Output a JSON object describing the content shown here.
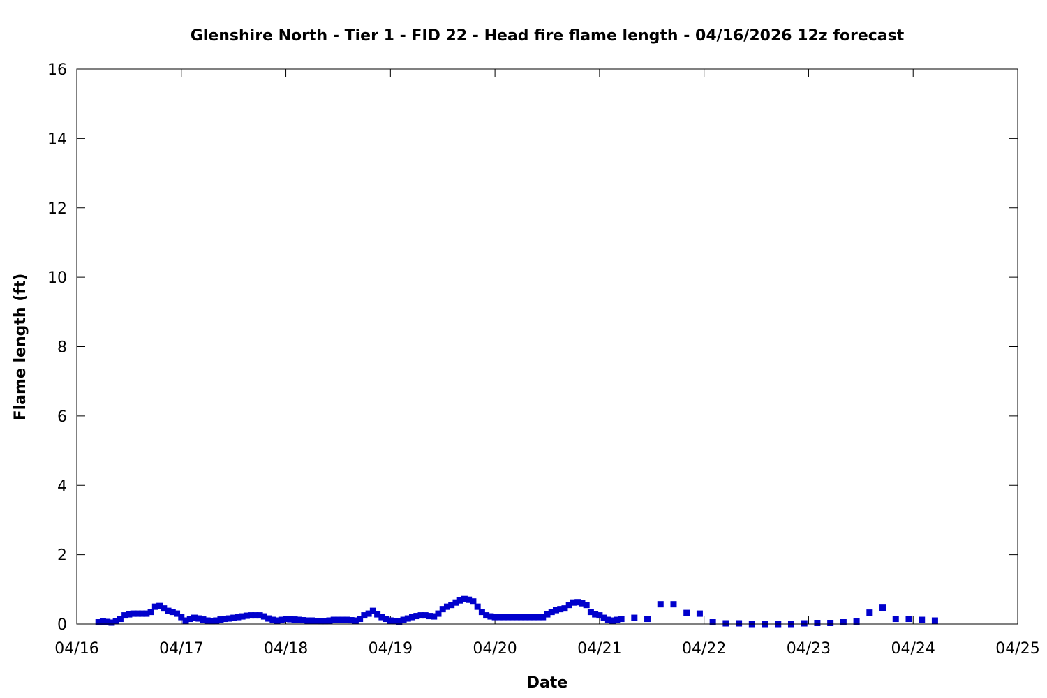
{
  "chart_data": {
    "type": "scatter",
    "title": "Glenshire North - Tier 1 - FID 22 - Head fire flame length - 04/16/2026 12z forecast",
    "xlabel": "Date",
    "ylabel": "Flame length (ft)",
    "x_ticks": [
      "04/16",
      "04/17",
      "04/18",
      "04/19",
      "04/20",
      "04/21",
      "04/22",
      "04/23",
      "04/24",
      "04/25"
    ],
    "y_ticks": [
      "0",
      "2",
      "4",
      "6",
      "8",
      "10",
      "12",
      "14",
      "16"
    ],
    "ylim": [
      0,
      16
    ],
    "xlim": [
      "04/16 00:00",
      "04/25 00:00"
    ],
    "grid": false,
    "marker_color": "#0000cc",
    "series": [
      {
        "x": [
          "04/16 05:00",
          "04/16 06:00",
          "04/16 07:00",
          "04/16 08:00",
          "04/16 09:00",
          "04/16 10:00",
          "04/16 11:00",
          "04/16 12:00",
          "04/16 13:00",
          "04/16 14:00",
          "04/16 15:00",
          "04/16 16:00",
          "04/16 17:00",
          "04/16 18:00",
          "04/16 19:00",
          "04/16 20:00",
          "04/16 21:00",
          "04/16 22:00",
          "04/16 23:00",
          "04/17 00:00",
          "04/17 01:00",
          "04/17 02:00",
          "04/17 03:00",
          "04/17 04:00",
          "04/17 05:00",
          "04/17 06:00",
          "04/17 07:00",
          "04/17 08:00",
          "04/17 09:00",
          "04/17 10:00",
          "04/17 11:00",
          "04/17 12:00",
          "04/17 13:00",
          "04/17 14:00",
          "04/17 15:00",
          "04/17 16:00",
          "04/17 17:00",
          "04/17 18:00",
          "04/17 19:00",
          "04/17 20:00",
          "04/17 21:00",
          "04/17 22:00",
          "04/17 23:00",
          "04/18 00:00",
          "04/18 01:00",
          "04/18 02:00",
          "04/18 03:00",
          "04/18 04:00",
          "04/18 05:00",
          "04/18 06:00",
          "04/18 07:00",
          "04/18 08:00",
          "04/18 09:00",
          "04/18 10:00",
          "04/18 11:00",
          "04/18 12:00",
          "04/18 13:00",
          "04/18 14:00",
          "04/18 15:00",
          "04/18 16:00",
          "04/18 17:00",
          "04/18 18:00",
          "04/18 19:00",
          "04/18 20:00",
          "04/18 21:00",
          "04/18 22:00",
          "04/18 23:00",
          "04/19 00:00",
          "04/19 01:00",
          "04/19 02:00",
          "04/19 03:00",
          "04/19 04:00",
          "04/19 05:00",
          "04/19 06:00",
          "04/19 07:00",
          "04/19 08:00",
          "04/19 09:00",
          "04/19 10:00",
          "04/19 11:00",
          "04/19 12:00",
          "04/19 13:00",
          "04/19 14:00",
          "04/19 15:00",
          "04/19 16:00",
          "04/19 17:00",
          "04/19 18:00",
          "04/19 19:00",
          "04/19 20:00",
          "04/19 21:00",
          "04/19 22:00",
          "04/19 23:00",
          "04/20 00:00",
          "04/20 01:00",
          "04/20 02:00",
          "04/20 03:00",
          "04/20 04:00",
          "04/20 05:00",
          "04/20 06:00",
          "04/20 07:00",
          "04/20 08:00",
          "04/20 09:00",
          "04/20 10:00",
          "04/20 11:00",
          "04/20 12:00",
          "04/20 13:00",
          "04/20 14:00",
          "04/20 15:00",
          "04/20 16:00",
          "04/20 17:00",
          "04/20 18:00",
          "04/20 19:00",
          "04/20 20:00",
          "04/20 21:00",
          "04/20 22:00",
          "04/20 23:00",
          "04/21 00:00",
          "04/21 01:00",
          "04/21 02:00",
          "04/21 03:00",
          "04/21 04:00",
          "04/21 05:00",
          "04/21 08:00",
          "04/21 11:00",
          "04/21 14:00",
          "04/21 17:00",
          "04/21 20:00",
          "04/21 23:00",
          "04/22 02:00",
          "04/22 05:00",
          "04/22 08:00",
          "04/22 11:00",
          "04/22 14:00",
          "04/22 17:00",
          "04/22 20:00",
          "04/22 23:00",
          "04/23 02:00",
          "04/23 05:00",
          "04/23 08:00",
          "04/23 11:00",
          "04/23 14:00",
          "04/23 17:00",
          "04/23 20:00",
          "04/23 23:00",
          "04/24 02:00",
          "04/24 05:00"
        ],
        "y": [
          0.05,
          0.07,
          0.06,
          0.04,
          0.08,
          0.15,
          0.25,
          0.28,
          0.3,
          0.3,
          0.3,
          0.3,
          0.35,
          0.5,
          0.52,
          0.45,
          0.38,
          0.35,
          0.3,
          0.2,
          0.1,
          0.15,
          0.18,
          0.16,
          0.13,
          0.1,
          0.08,
          0.1,
          0.13,
          0.15,
          0.16,
          0.18,
          0.2,
          0.22,
          0.24,
          0.25,
          0.25,
          0.25,
          0.22,
          0.16,
          0.12,
          0.1,
          0.12,
          0.15,
          0.14,
          0.13,
          0.12,
          0.11,
          0.1,
          0.1,
          0.09,
          0.08,
          0.08,
          0.1,
          0.12,
          0.12,
          0.12,
          0.12,
          0.11,
          0.1,
          0.15,
          0.25,
          0.3,
          0.38,
          0.28,
          0.2,
          0.15,
          0.1,
          0.08,
          0.07,
          0.12,
          0.16,
          0.2,
          0.23,
          0.25,
          0.25,
          0.23,
          0.22,
          0.3,
          0.43,
          0.5,
          0.55,
          0.62,
          0.68,
          0.72,
          0.7,
          0.65,
          0.5,
          0.35,
          0.25,
          0.22,
          0.2,
          0.2,
          0.2,
          0.2,
          0.2,
          0.2,
          0.2,
          0.2,
          0.2,
          0.2,
          0.2,
          0.2,
          0.28,
          0.35,
          0.4,
          0.43,
          0.45,
          0.55,
          0.62,
          0.63,
          0.6,
          0.55,
          0.35,
          0.28,
          0.25,
          0.18,
          0.12,
          0.1,
          0.12,
          0.15,
          0.18,
          0.15,
          0.57,
          0.57,
          0.32,
          0.3,
          0.05,
          0.02,
          0.02,
          0.0,
          0.0,
          0.0,
          0.0,
          0.02,
          0.03,
          0.03,
          0.05,
          0.07,
          0.33,
          0.47,
          0.15,
          0.15,
          0.12,
          0.1
        ]
      }
    ]
  }
}
